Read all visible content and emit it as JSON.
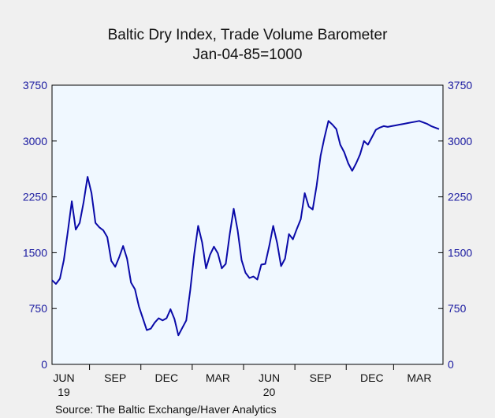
{
  "chart_data": {
    "type": "line",
    "title": "Baltic Dry Index, Trade Volume Barometer",
    "subtitle": "Jan-04-85=1000",
    "source": "Source:  The Baltic Exchange/Haver Analytics",
    "ylim": [
      0,
      3750
    ],
    "yticks": [
      "3750",
      "3000",
      "2250",
      "1500",
      "750",
      "0"
    ],
    "yticks_right": [
      "3750",
      "3000",
      "2250",
      "1500",
      "750",
      "0"
    ],
    "ytick_values": [
      3750,
      3000,
      2250,
      1500,
      750,
      0
    ],
    "xlim": [
      0,
      99
    ],
    "xticks": [
      {
        "label": "JUN",
        "at": 3
      },
      {
        "label": "SEP",
        "at": 16
      },
      {
        "label": "DEC",
        "at": 29
      },
      {
        "label": "MAR",
        "at": 42
      },
      {
        "label": "JUN",
        "at": 55
      },
      {
        "label": "SEP",
        "at": 68
      },
      {
        "label": "DEC",
        "at": 81
      },
      {
        "label": "MAR",
        "at": 93
      }
    ],
    "year_labels": [
      {
        "label": "19",
        "at": 3
      },
      {
        "label": "20",
        "at": 55
      }
    ],
    "grid": false,
    "line_color": "#0a0aa8",
    "series": [
      {
        "x": [
          0,
          1,
          2,
          3,
          4,
          5,
          6,
          7,
          8,
          9,
          10,
          11,
          12,
          13,
          14,
          15,
          16,
          17,
          18,
          19,
          20,
          21,
          22,
          23,
          24,
          25,
          26,
          27,
          28,
          29,
          30,
          31,
          32,
          33,
          34,
          35,
          36,
          37,
          38,
          39,
          40,
          41,
          42,
          43,
          44,
          45,
          46,
          47,
          48,
          49,
          50,
          51,
          52,
          53,
          54,
          55,
          56,
          57,
          58,
          59,
          60,
          61,
          62,
          63,
          64,
          65,
          66,
          67,
          68,
          69,
          70,
          71,
          72,
          73,
          74,
          75,
          76,
          77,
          78,
          79,
          80,
          81,
          82,
          83,
          84,
          85,
          86,
          87,
          88,
          89,
          90,
          91,
          92,
          93,
          94,
          95,
          96,
          97,
          98
        ],
        "values": [
          1130,
          1080,
          1150,
          1400,
          1780,
          2190,
          1810,
          1900,
          2180,
          2520,
          2300,
          1900,
          1840,
          1800,
          1710,
          1390,
          1310,
          1440,
          1590,
          1420,
          1100,
          1010,
          780,
          620,
          460,
          480,
          560,
          620,
          590,
          620,
          740,
          610,
          390,
          490,
          590,
          1000,
          1480,
          1860,
          1640,
          1290,
          1470,
          1580,
          1490,
          1290,
          1350,
          1750,
          2090,
          1800,
          1400,
          1230,
          1160,
          1180,
          1140,
          1340,
          1350,
          1590,
          1860,
          1630,
          1320,
          1420,
          1750,
          1680,
          1820,
          1950,
          2300,
          2120,
          2080,
          2400,
          2800,
          3050,
          3270,
          3220,
          3160,
          2950,
          2850,
          2700,
          2600,
          2700,
          2820,
          3000,
          2950,
          3050,
          3150,
          3180,
          3200,
          3190,
          3200,
          3210,
          3220,
          3230,
          3240,
          3250,
          3260,
          3270,
          3250,
          3230,
          3200,
          3180,
          3160
        ]
      }
    ]
  }
}
